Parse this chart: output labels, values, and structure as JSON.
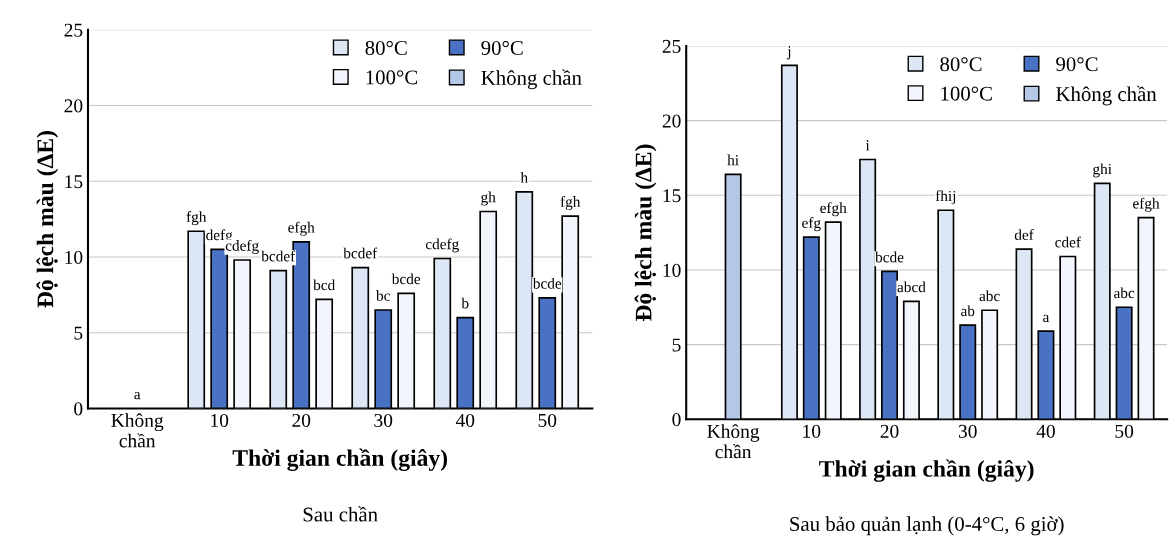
{
  "chart_data": [
    {
      "type": "bar",
      "title": "Sau chần",
      "xlabel": "Thời gian chần (giây)",
      "ylabel": "Độ lệch màu (ΔE)",
      "categories": [
        "Không chần",
        "10",
        "20",
        "30",
        "40",
        "50"
      ],
      "ylim": [
        0,
        25
      ],
      "yticks": [
        0,
        5,
        10,
        15,
        20,
        25
      ],
      "grid": "y",
      "legend": "top right",
      "series": [
        {
          "name": "80°C",
          "color": "#dce6f5",
          "values": [
            null,
            11.7,
            9.1,
            9.3,
            9.9,
            14.3
          ],
          "value_labels": [
            null,
            "fgh",
            "bcdef",
            "bcdef",
            "cdefg",
            "h"
          ]
        },
        {
          "name": "90°C",
          "color": "#4a72c4",
          "values": [
            null,
            10.5,
            11.0,
            6.5,
            6.0,
            7.3
          ],
          "value_labels": [
            null,
            "defg",
            "efgh",
            "bc",
            "b",
            "bcde"
          ]
        },
        {
          "name": "100°C",
          "color": "#f2f5fb",
          "values": [
            null,
            9.8,
            7.2,
            7.6,
            13.0,
            12.7
          ],
          "value_labels": [
            null,
            "cdefg",
            "bcd",
            "bcde",
            "gh",
            "fgh"
          ]
        },
        {
          "name": "Không chần",
          "color": "#b4c7e7",
          "values": [
            0,
            null,
            null,
            null,
            null,
            null
          ],
          "value_labels": [
            "a",
            null,
            null,
            null,
            null,
            null
          ]
        }
      ]
    },
    {
      "type": "bar",
      "title": "Sau bảo quản lạnh (0-4°C, 6 giờ)",
      "xlabel": "Thời gian chần (giây)",
      "ylabel": "Độ lệch màu (ΔE)",
      "categories": [
        "Không chần",
        "10",
        "20",
        "30",
        "40",
        "50"
      ],
      "ylim": [
        0,
        25
      ],
      "yticks": [
        0,
        5,
        10,
        15,
        20,
        25
      ],
      "grid": "y",
      "legend": "top right",
      "series": [
        {
          "name": "80°C",
          "color": "#dce6f5",
          "values": [
            null,
            23.7,
            17.4,
            14.0,
            11.4,
            15.8
          ],
          "value_labels": [
            null,
            "j",
            "i",
            "fhij",
            "def",
            "ghi"
          ]
        },
        {
          "name": "90°C",
          "color": "#4a72c4",
          "values": [
            null,
            12.2,
            9.9,
            6.3,
            5.9,
            7.5
          ],
          "value_labels": [
            null,
            "efg",
            "bcde",
            "ab",
            "a",
            "abc"
          ]
        },
        {
          "name": "100°C",
          "color": "#f2f5fb",
          "values": [
            null,
            13.2,
            7.9,
            7.3,
            10.9,
            13.5
          ],
          "value_labels": [
            null,
            "efgh",
            "abcd",
            "abc",
            "cdef",
            "efgh"
          ]
        },
        {
          "name": "Không chần",
          "color": "#b4c7e7",
          "values": [
            16.4,
            null,
            null,
            null,
            null,
            null
          ],
          "value_labels": [
            "hi",
            null,
            null,
            null,
            null,
            null
          ]
        }
      ]
    }
  ]
}
